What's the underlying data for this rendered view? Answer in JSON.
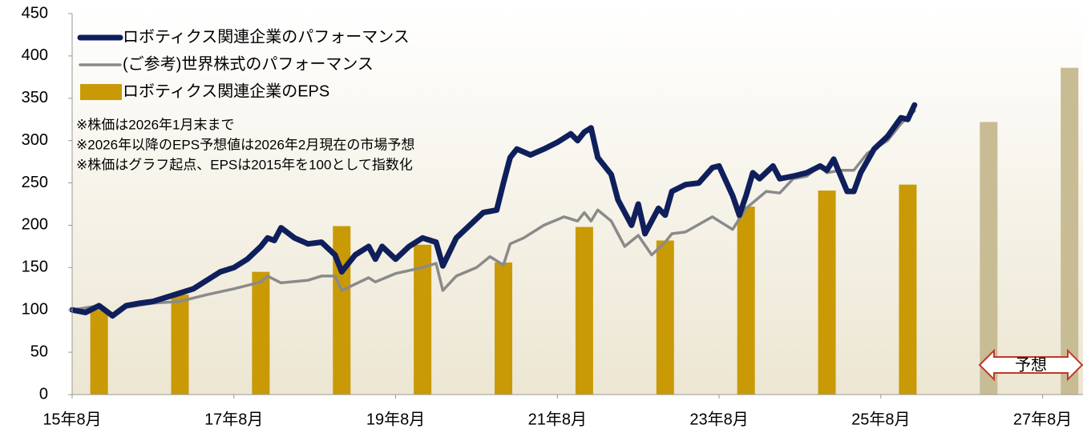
{
  "chart_data": {
    "type": "bar_line",
    "notes": [
      "※株価は2026年1月末まで",
      "※2026年以降のEPS予想値は2026年2月現在の市場予想",
      "※株価はグラフ起点、EPSは2015年を100として指数化"
    ],
    "annotation": "予想",
    "xlim": [
      "2015-08",
      "2028-02"
    ],
    "xticks": [
      {
        "value": "2015-08",
        "label": "15年8月"
      },
      {
        "value": "2017-08",
        "label": "17年8月"
      },
      {
        "value": "2019-08",
        "label": "19年8月"
      },
      {
        "value": "2021-08",
        "label": "21年8月"
      },
      {
        "value": "2023-08",
        "label": "23年8月"
      },
      {
        "value": "2025-08",
        "label": "25年8月"
      },
      {
        "value": "2027-08",
        "label": "27年8月"
      }
    ],
    "ylim": [
      0,
      450
    ],
    "yticks": [
      0,
      50,
      100,
      150,
      200,
      250,
      300,
      350,
      400,
      450
    ],
    "series": [
      {
        "name": "ロボティクス関連企業のパフォーマンス",
        "type": "line",
        "color": "#0f1f5c",
        "width": 7,
        "x": [
          "2015-08",
          "2015-10",
          "2015-12",
          "2016-02",
          "2016-04",
          "2016-06",
          "2016-08",
          "2016-10",
          "2016-12",
          "2017-02",
          "2017-04",
          "2017-06",
          "2017-08",
          "2017-10",
          "2017-12",
          "2018-01",
          "2018-02",
          "2018-03",
          "2018-05",
          "2018-07",
          "2018-09",
          "2018-11",
          "2018-12",
          "2019-02",
          "2019-04",
          "2019-05",
          "2019-06",
          "2019-08",
          "2019-10",
          "2019-12",
          "2020-02",
          "2020-03",
          "2020-05",
          "2020-07",
          "2020-09",
          "2020-11",
          "2020-12",
          "2021-01",
          "2021-02",
          "2021-04",
          "2021-06",
          "2021-08",
          "2021-10",
          "2021-11",
          "2021-12",
          "2022-01",
          "2022-02",
          "2022-04",
          "2022-05",
          "2022-07",
          "2022-08",
          "2022-09",
          "2022-11",
          "2022-12",
          "2023-01",
          "2023-03",
          "2023-05",
          "2023-07",
          "2023-08",
          "2023-10",
          "2023-11",
          "2023-12",
          "2024-01",
          "2024-02",
          "2024-04",
          "2024-05",
          "2024-07",
          "2024-09",
          "2024-11",
          "2024-12",
          "2025-01",
          "2025-03",
          "2025-04",
          "2025-05",
          "2025-07",
          "2025-09",
          "2025-11",
          "2025-12",
          "2026-01"
        ],
        "values": [
          100,
          97,
          105,
          93,
          105,
          108,
          110,
          115,
          120,
          125,
          135,
          145,
          150,
          160,
          175,
          185,
          182,
          197,
          185,
          178,
          180,
          165,
          145,
          165,
          175,
          160,
          175,
          160,
          175,
          185,
          180,
          152,
          185,
          200,
          215,
          218,
          250,
          280,
          290,
          283,
          290,
          298,
          308,
          300,
          310,
          315,
          280,
          260,
          230,
          200,
          225,
          190,
          220,
          212,
          240,
          248,
          250,
          268,
          270,
          235,
          212,
          235,
          262,
          255,
          270,
          255,
          258,
          262,
          270,
          265,
          278,
          240,
          240,
          262,
          290,
          305,
          327,
          325,
          342
        ]
      },
      {
        "name": "(ご参考)世界株式のパフォーマンス",
        "type": "line",
        "color": "#8a8a8a",
        "width": 3.5,
        "x": [
          "2015-08",
          "2015-12",
          "2016-02",
          "2016-04",
          "2016-08",
          "2016-12",
          "2017-04",
          "2017-08",
          "2017-12",
          "2018-01",
          "2018-03",
          "2018-07",
          "2018-09",
          "2018-11",
          "2018-12",
          "2019-04",
          "2019-05",
          "2019-08",
          "2019-12",
          "2020-02",
          "2020-03",
          "2020-05",
          "2020-08",
          "2020-10",
          "2020-12",
          "2021-01",
          "2021-03",
          "2021-06",
          "2021-09",
          "2021-11",
          "2021-12",
          "2022-01",
          "2022-02",
          "2022-04",
          "2022-05",
          "2022-06",
          "2022-08",
          "2022-10",
          "2022-12",
          "2023-01",
          "2023-03",
          "2023-07",
          "2023-08",
          "2023-10",
          "2023-12",
          "2024-03",
          "2024-05",
          "2024-07",
          "2024-09",
          "2024-11",
          "2024-12",
          "2025-02",
          "2025-04",
          "2025-06",
          "2025-09",
          "2025-11",
          "2026-01"
        ],
        "values": [
          100,
          105,
          95,
          103,
          108,
          110,
          118,
          125,
          133,
          140,
          132,
          135,
          140,
          140,
          123,
          138,
          133,
          143,
          150,
          155,
          123,
          140,
          150,
          163,
          153,
          178,
          185,
          200,
          210,
          205,
          215,
          205,
          218,
          205,
          190,
          175,
          188,
          165,
          180,
          190,
          192,
          210,
          205,
          195,
          220,
          240,
          238,
          255,
          258,
          270,
          262,
          265,
          265,
          285,
          300,
          320,
          335
        ]
      },
      {
        "name": "ロボティクス関連企業のEPS",
        "type": "bar",
        "color": "#c99a06",
        "colors": [
          "#c99a06",
          "#c99a06",
          "#c99a06",
          "#c99a06",
          "#c99a06",
          "#c99a06",
          "#c99a06",
          "#c99a06",
          "#c99a06",
          "#c99a06",
          "#c99a06",
          "#c8bc94",
          "#c8bc94"
        ],
        "x": [
          "2015-12",
          "2016-12",
          "2017-12",
          "2018-12",
          "2019-12",
          "2020-12",
          "2021-12",
          "2022-12",
          "2023-12",
          "2024-12",
          "2025-12",
          "2026-12",
          "2027-12"
        ],
        "values": [
          100,
          118,
          145,
          199,
          177,
          156,
          198,
          182,
          222,
          241,
          248,
          322,
          386
        ]
      }
    ]
  }
}
